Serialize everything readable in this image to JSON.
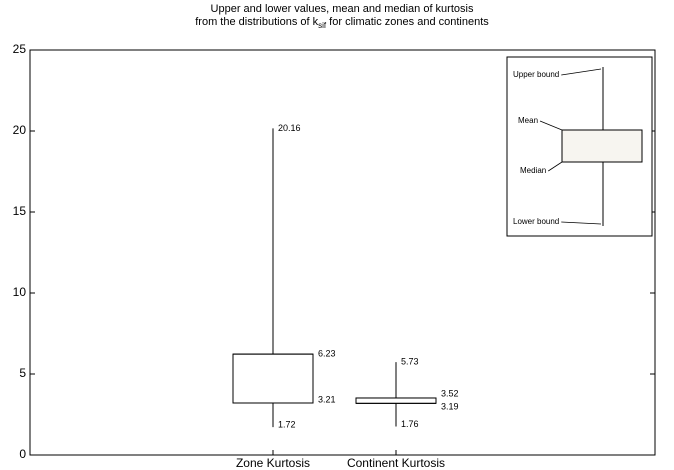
{
  "chart_data": {
    "type": "box",
    "title": "Upper and lower values, mean and median of kurtosis",
    "subtitle": "from the distributions of k",
    "subtitle_subscript": "sif",
    "subtitle_end": " for climatic zones and continents",
    "categories": [
      "Zone Kurtosis",
      "Continent Kurtosis"
    ],
    "series": [
      {
        "name": "Upper bound",
        "values": [
          20.16,
          5.73
        ]
      },
      {
        "name": "Mean",
        "values": [
          6.23,
          3.52
        ]
      },
      {
        "name": "Median",
        "values": [
          3.21,
          3.19
        ]
      },
      {
        "name": "Lower bound",
        "values": [
          1.72,
          1.76
        ]
      }
    ],
    "ylim": [
      0,
      25
    ],
    "yticks": [
      0,
      5,
      10,
      15,
      20,
      25
    ]
  }
}
